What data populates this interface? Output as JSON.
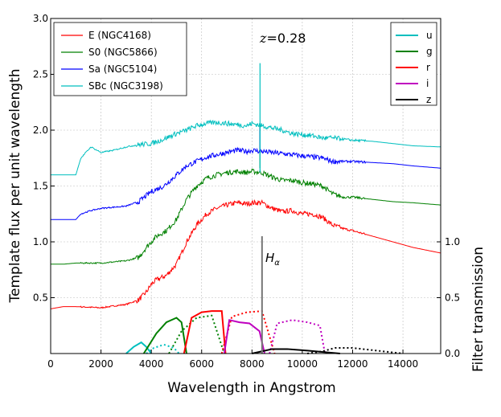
{
  "chart_data": {
    "type": "line",
    "title": "",
    "annotations": {
      "redshift_var": "z",
      "redshift_value": "=0.28",
      "halpha_main": "H",
      "halpha_sub": "α",
      "halpha_wavelength": 8400
    },
    "xlabel": "Wavelength in Angstrom",
    "ylabel": "Template flux per unit wavelength",
    "ylabel_right": "Filter transmission",
    "xlim": [
      0,
      15500
    ],
    "ylim": [
      0.0,
      3.0
    ],
    "grid": true,
    "x_ticks": [
      0,
      2000,
      4000,
      6000,
      8000,
      10000,
      12000,
      14000
    ],
    "x_tick_labels": [
      "0",
      "2000",
      "4000",
      "6000",
      "8000",
      "10000",
      "12000",
      "14000"
    ],
    "y_ticks": [
      0.5,
      1.0,
      1.5,
      2.0,
      2.5,
      3.0
    ],
    "y_tick_labels": [
      "0.5",
      "1.0",
      "1.5",
      "2.0",
      "2.5",
      "3.0"
    ],
    "y2_ticks": [
      0.0,
      0.5,
      1.0
    ],
    "y2_tick_labels": [
      "0.0",
      "0.5",
      "1.0"
    ],
    "y2_ylim": [
      0.0,
      3.0
    ],
    "template_series": [
      {
        "name": "E (NGC4168)",
        "color": "#ff0000",
        "x": [
          0,
          500,
          1000,
          2000,
          3000,
          3500,
          3800,
          4000,
          4200,
          4600,
          5000,
          5400,
          5800,
          6200,
          6600,
          7000,
          7400,
          7800,
          8000,
          8400,
          8800,
          9200,
          9600,
          10000,
          10400,
          10800,
          11200,
          11600,
          12000,
          12800,
          13600,
          14400,
          15500
        ],
        "y": [
          0.4,
          0.42,
          0.42,
          0.41,
          0.44,
          0.48,
          0.55,
          0.62,
          0.66,
          0.7,
          0.8,
          1.0,
          1.15,
          1.25,
          1.3,
          1.33,
          1.35,
          1.34,
          1.35,
          1.35,
          1.3,
          1.27,
          1.28,
          1.25,
          1.25,
          1.22,
          1.15,
          1.12,
          1.1,
          1.05,
          1.0,
          0.95,
          0.9
        ]
      },
      {
        "name": "S0 (NGC5866)",
        "color": "#008000",
        "x": [
          0,
          500,
          1000,
          2000,
          3000,
          3500,
          3800,
          4000,
          4200,
          4600,
          5000,
          5400,
          5800,
          6200,
          6600,
          7000,
          7400,
          7800,
          8000,
          8400,
          8800,
          9200,
          9600,
          10000,
          10400,
          10800,
          11200,
          11600,
          12000,
          12800,
          13600,
          14400,
          15500
        ],
        "y": [
          0.8,
          0.8,
          0.81,
          0.81,
          0.83,
          0.86,
          0.95,
          1.0,
          1.05,
          1.1,
          1.2,
          1.38,
          1.5,
          1.57,
          1.6,
          1.62,
          1.63,
          1.62,
          1.63,
          1.62,
          1.58,
          1.55,
          1.55,
          1.53,
          1.52,
          1.5,
          1.43,
          1.4,
          1.4,
          1.38,
          1.36,
          1.35,
          1.33
        ]
      },
      {
        "name": "Sa (NGC5104)",
        "color": "#0000ff",
        "x": [
          0,
          500,
          1000,
          1200,
          1600,
          2000,
          3000,
          3500,
          4000,
          4500,
          5000,
          5400,
          5800,
          6200,
          6600,
          7000,
          7400,
          7800,
          8000,
          8400,
          8800,
          9200,
          9600,
          10000,
          10400,
          10800,
          11200,
          11600,
          12000,
          12800,
          13600,
          14400,
          15500
        ],
        "y": [
          1.2,
          1.2,
          1.2,
          1.25,
          1.28,
          1.3,
          1.32,
          1.36,
          1.45,
          1.5,
          1.6,
          1.68,
          1.72,
          1.76,
          1.78,
          1.8,
          1.82,
          1.81,
          1.82,
          1.81,
          1.8,
          1.79,
          1.78,
          1.77,
          1.76,
          1.75,
          1.72,
          1.72,
          1.72,
          1.71,
          1.7,
          1.68,
          1.66
        ]
      },
      {
        "name": "SBc (NGC3198)",
        "color": "#00bfbf",
        "x": [
          0,
          500,
          1000,
          1200,
          1600,
          2000,
          2500,
          3000,
          3500,
          4000,
          4500,
          5000,
          5400,
          5800,
          6200,
          6600,
          7000,
          7400,
          7800,
          8000,
          8400,
          8800,
          9200,
          9600,
          10000,
          10400,
          10800,
          11200,
          11600,
          12000,
          12800,
          13600,
          14400,
          15500
        ],
        "y": [
          1.6,
          1.6,
          1.6,
          1.75,
          1.85,
          1.8,
          1.82,
          1.85,
          1.87,
          1.88,
          1.92,
          1.97,
          2.0,
          2.04,
          2.06,
          2.07,
          2.06,
          2.05,
          2.04,
          2.06,
          2.04,
          2.02,
          2.0,
          1.97,
          1.96,
          1.95,
          1.93,
          1.93,
          1.92,
          1.91,
          1.9,
          1.88,
          1.86,
          1.85
        ]
      }
    ],
    "filter_series": [
      {
        "name": "u",
        "color": "#00bfbf",
        "solid_x": [
          3000,
          3300,
          3600,
          3800,
          4000
        ],
        "solid_y": [
          0.0,
          0.06,
          0.1,
          0.06,
          0.0
        ],
        "dashed_x": [
          3800,
          4100,
          4500,
          4900,
          5100
        ],
        "dashed_y": [
          0.0,
          0.05,
          0.08,
          0.05,
          0.0
        ]
      },
      {
        "name": "g",
        "color": "#008000",
        "solid_x": [
          3700,
          4200,
          4600,
          5000,
          5200,
          5400
        ],
        "solid_y": [
          0.0,
          0.18,
          0.28,
          0.32,
          0.28,
          0.0
        ],
        "dashed_x": [
          4700,
          5200,
          5800,
          6400,
          6900
        ],
        "dashed_y": [
          0.0,
          0.2,
          0.32,
          0.34,
          0.0
        ]
      },
      {
        "name": "r",
        "color": "#ff0000",
        "solid_x": [
          5300,
          5600,
          6000,
          6400,
          6800,
          6950
        ],
        "solid_y": [
          0.0,
          0.32,
          0.37,
          0.38,
          0.38,
          0.0
        ],
        "dashed_x": [
          6800,
          7200,
          7800,
          8400,
          8900
        ],
        "dashed_y": [
          0.0,
          0.33,
          0.37,
          0.38,
          0.0
        ]
      },
      {
        "name": "i",
        "color": "#bf00bf",
        "solid_x": [
          6900,
          7100,
          7500,
          7900,
          8300,
          8500
        ],
        "solid_y": [
          0.0,
          0.3,
          0.28,
          0.27,
          0.2,
          0.0
        ],
        "dashed_x": [
          8700,
          9000,
          9600,
          10200,
          10700,
          10900
        ],
        "dashed_y": [
          0.0,
          0.27,
          0.3,
          0.28,
          0.25,
          0.0
        ]
      },
      {
        "name": "z",
        "color": "#000000",
        "solid_x": [
          8000,
          8400,
          8800,
          9400,
          10000,
          11000,
          11500
        ],
        "solid_y": [
          0.0,
          0.02,
          0.04,
          0.04,
          0.03,
          0.01,
          0.0
        ],
        "dashed_x": [
          10200,
          10800,
          11300,
          12000,
          12800,
          14000
        ],
        "dashed_y": [
          0.0,
          0.02,
          0.05,
          0.05,
          0.03,
          0.0
        ]
      }
    ],
    "emission_spike": {
      "x": 8320,
      "ys": [
        1.66,
        2.02,
        2.6
      ]
    },
    "halpha_line": {
      "x": 8400,
      "y_top": 1.05
    },
    "legend_left_position": "upper-left",
    "legend_right_position": "upper-right"
  }
}
